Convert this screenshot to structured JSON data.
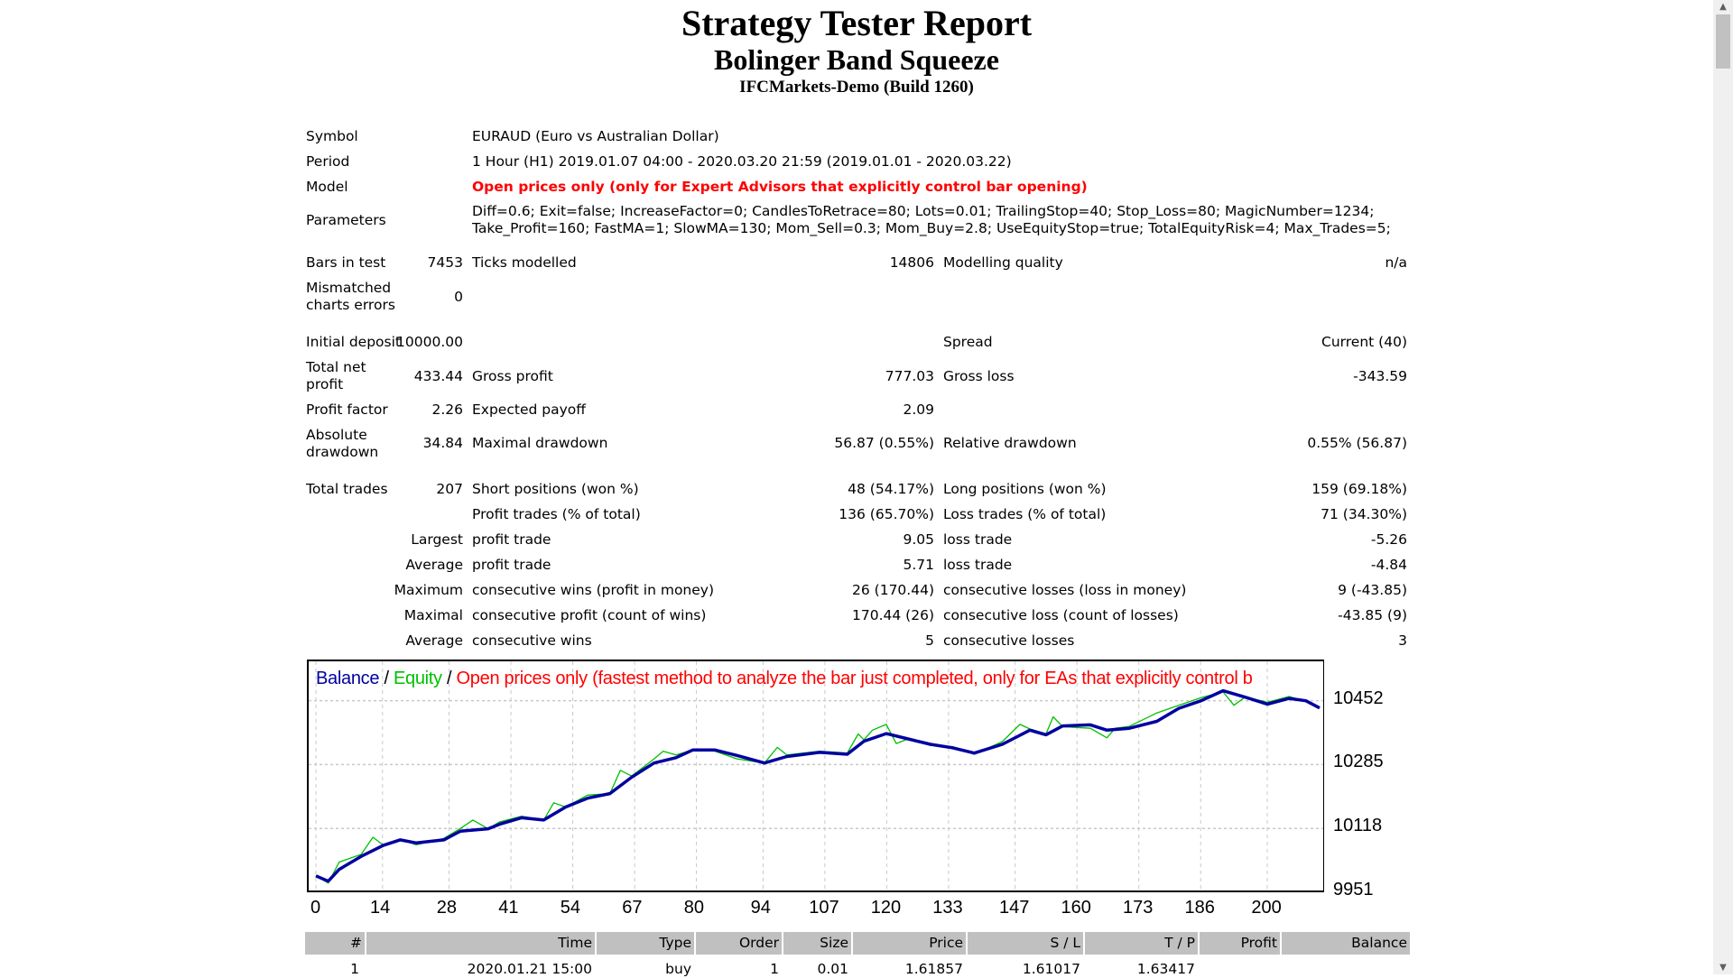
{
  "header": {
    "title": "Strategy Tester Report",
    "expert": "Bolinger Band Squeeze",
    "server": "IFCMarkets-Demo (Build 1260)"
  },
  "info": {
    "symbol_label": "Symbol",
    "symbol": "EURAUD (Euro vs Australian Dollar)",
    "period_label": "Period",
    "period": "1 Hour (H1) 2019.01.07 04:00 - 2020.03.20 21:59 (2019.01.01 - 2020.03.22)",
    "model_label": "Model",
    "model": "Open prices only (only for Expert Advisors that explicitly control bar opening)",
    "parameters_label": "Parameters",
    "parameters_line1": "Diff=0.6; Exit=false; IncreaseFactor=0; CandlesToRetrace=80; Lots=0.01; TrailingStop=40; Stop_Loss=80; MagicNumber=1234;",
    "parameters_line2": "Take_Profit=160; FastMA=1; SlowMA=130; Mom_Sell=0.3; Mom_Buy=2.8; UseEquityStop=true; TotalEquityRisk=4; Max_Trades=5;",
    "model_color": "#ff0000"
  },
  "stats": {
    "bars_label": "Bars in test",
    "bars": "7453",
    "ticks_label": "Ticks modelled",
    "ticks": "14806",
    "quality_label": "Modelling quality",
    "quality": "n/a",
    "mismatch_label1": "Mismatched",
    "mismatch_label2": "charts errors",
    "mismatch": "0",
    "deposit_label": "Initial deposit",
    "deposit": "10000.00",
    "spread_label": "Spread",
    "spread": "Current (40)",
    "netprofit_label1": "Total net",
    "netprofit_label2": "profit",
    "netprofit": "433.44",
    "grossprofit_label": "Gross profit",
    "grossprofit": "777.03",
    "grossloss_label": "Gross loss",
    "grossloss": "-343.59",
    "pf_label": "Profit factor",
    "pf": "2.26",
    "payoff_label": "Expected payoff",
    "payoff": "2.09",
    "absdd_label1": "Absolute",
    "absdd_label2": "drawdown",
    "absdd": "34.84",
    "maxdd_label": "Maximal drawdown",
    "maxdd": "56.87 (0.55%)",
    "reldd_label": "Relative drawdown",
    "reldd": "0.55% (56.87)",
    "trades_label": "Total trades",
    "trades": "207",
    "short_label": "Short positions (won %)",
    "short": "48 (54.17%)",
    "long_label": "Long positions (won %)",
    "long": "159 (69.18%)",
    "ptrades_label": "Profit trades (% of total)",
    "ptrades": "136 (65.70%)",
    "ltrades_label": "Loss trades (% of total)",
    "ltrades": "71 (34.30%)",
    "largest_label": "Largest",
    "largest_p_label": "profit trade",
    "largest_p": "9.05",
    "largest_l_label": "loss trade",
    "largest_l": "-5.26",
    "average_label": "Average",
    "average_p_label": "profit trade",
    "average_p": "5.71",
    "average_l_label": "loss trade",
    "average_l": "-4.84",
    "maximum_label": "Maximum",
    "maxwins_label": "consecutive wins (profit in money)",
    "maxwins": "26 (170.44)",
    "maxlosses_label": "consecutive losses (loss in money)",
    "maxlosses": "9 (-43.85)",
    "maximal_label": "Maximal",
    "maxprofit_label": "consecutive profit (count of wins)",
    "maxprofit": "170.44 (26)",
    "maxloss_label": "consecutive loss (count of losses)",
    "maxloss": "-43.85 (9)",
    "avgcons_label": "Average",
    "avgwins_label": "consecutive wins",
    "avgwins": "5",
    "avglosses_label": "consecutive losses",
    "avglosses": "3"
  },
  "chart_data": {
    "type": "line",
    "legend_balance": "Balance",
    "legend_sep": " / ",
    "legend_equity": "Equity",
    "legend_model": "Open prices only (fastest method to analyze the bar just completed, only for EAs that explicitly control b",
    "colors": {
      "balance": "#0000a0",
      "equity": "#00c000",
      "model": "#ff0000",
      "grid": "#c8c8c8"
    },
    "x_ticks": [
      "0",
      "14",
      "28",
      "41",
      "54",
      "67",
      "80",
      "94",
      "107",
      "120",
      "133",
      "147",
      "160",
      "173",
      "186",
      "200"
    ],
    "y_ticks": [
      "9951",
      "10118",
      "10285",
      "10452"
    ],
    "xlim": [
      0,
      211
    ],
    "ylim": [
      9951,
      10555
    ],
    "grid": true,
    "series": [
      {
        "name": "Balance",
        "x": [
          0,
          2.6,
          4.9,
          9.5,
          14.2,
          17.7,
          21.1,
          26.9,
          30.4,
          36.2,
          38.6,
          43.2,
          47.9,
          52.5,
          57.1,
          61.8,
          66.4,
          71.1,
          75.7,
          79.2,
          83.9,
          88.5,
          94.3,
          99,
          105.9,
          111.7,
          115.2,
          119.9,
          124.5,
          129.2,
          133.8,
          138.4,
          144.3,
          150.1,
          153.5,
          157,
          162.8,
          166.3,
          171,
          176.8,
          181.4,
          186.1,
          190.7,
          195.4,
          200,
          204.6,
          208.1,
          211
        ],
        "y": [
          9994,
          9980,
          10011,
          10045,
          10074,
          10088,
          10080,
          10088,
          10111,
          10117,
          10129,
          10146,
          10140,
          10174,
          10197,
          10209,
          10252,
          10289,
          10303,
          10323,
          10323,
          10309,
          10289,
          10306,
          10317,
          10312,
          10346,
          10366,
          10352,
          10338,
          10329,
          10315,
          10338,
          10375,
          10363,
          10386,
          10389,
          10375,
          10380,
          10398,
          10432,
          10452,
          10478,
          10461,
          10443,
          10458,
          10452,
          10433
        ]
      },
      {
        "name": "Equity",
        "x": [
          0,
          2.6,
          4.9,
          9.5,
          12,
          14.2,
          17.7,
          21.1,
          26.9,
          30.4,
          33,
          36.2,
          38.6,
          43.2,
          47.9,
          50,
          52.5,
          57.1,
          61.8,
          64,
          66.4,
          71.1,
          73,
          75.7,
          79.2,
          83.9,
          88.5,
          94.3,
          97,
          99,
          105.9,
          111.7,
          114,
          115.2,
          117,
          119.9,
          122,
          124.5,
          129.2,
          133.8,
          138.4,
          144.3,
          148,
          150.1,
          153.5,
          155,
          157,
          162.8,
          166.3,
          168,
          171,
          176.8,
          181.4,
          186.1,
          190.7,
          193,
          195.4,
          200,
          204.6,
          208.1,
          211
        ],
        "y": [
          9994,
          9975,
          10030,
          10050,
          10095,
          10074,
          10090,
          10075,
          10092,
          10118,
          10140,
          10117,
          10135,
          10150,
          10140,
          10185,
          10174,
          10205,
          10209,
          10270,
          10255,
          10300,
          10320,
          10310,
          10323,
          10320,
          10300,
          10289,
          10330,
          10310,
          10320,
          10315,
          10365,
          10350,
          10375,
          10390,
          10340,
          10352,
          10335,
          10332,
          10312,
          10345,
          10390,
          10378,
          10365,
          10410,
          10384,
          10380,
          10355,
          10380,
          10385,
          10420,
          10440,
          10460,
          10475,
          10440,
          10462,
          10448,
          10463,
          10450,
          10433
        ]
      }
    ]
  },
  "trades_table": {
    "headers": [
      "#",
      "Time",
      "Type",
      "Order",
      "Size",
      "Price",
      "S / L",
      "T / P",
      "Profit",
      "Balance"
    ],
    "rows": [
      [
        "1",
        "2020.01.21 15:00",
        "buy",
        "1",
        "0.01",
        "1.61857",
        "1.61017",
        "1.63417",
        "",
        ""
      ]
    ]
  },
  "scrollbar": {
    "position": 0
  }
}
